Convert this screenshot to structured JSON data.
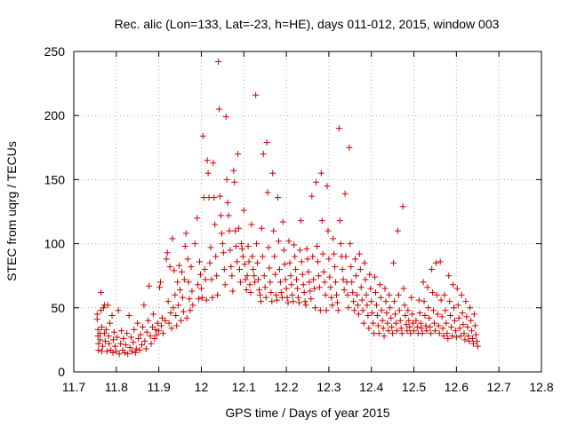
{
  "chart_data": {
    "type": "scatter",
    "title": "Rec. alic (Lon=133, Lat=-23, h=HE), days 011-012, 2015, window 003",
    "xlabel": "GPS time / Days of year 2015",
    "ylabel": "STEC from uqrg / TECUs",
    "xlim": [
      11.7,
      12.8
    ],
    "ylim": [
      0,
      250
    ],
    "x_ticks": [
      "11.7",
      "11.8",
      "11.9",
      "12",
      "12.1",
      "12.2",
      "12.3",
      "12.4",
      "12.5",
      "12.6",
      "12.7",
      "12.8"
    ],
    "y_ticks": [
      "0",
      "50",
      "100",
      "150",
      "200",
      "250"
    ],
    "grid": true,
    "legend": "none",
    "marker": "plus",
    "color": "#cc0000",
    "points": [
      [
        11.755,
        41
      ],
      [
        11.755,
        45
      ],
      [
        11.757,
        33
      ],
      [
        11.757,
        28
      ],
      [
        11.758,
        22
      ],
      [
        11.758,
        17
      ],
      [
        11.762,
        30
      ],
      [
        11.762,
        25
      ],
      [
        11.764,
        62
      ],
      [
        11.764,
        48
      ],
      [
        11.766,
        35
      ],
      [
        11.766,
        16
      ],
      [
        11.768,
        20
      ],
      [
        11.77,
        50
      ],
      [
        11.772,
        30
      ],
      [
        11.772,
        52
      ],
      [
        11.774,
        24
      ],
      [
        11.776,
        33
      ],
      [
        11.778,
        16
      ],
      [
        11.78,
        52
      ],
      [
        11.782,
        28
      ],
      [
        11.783,
        22
      ],
      [
        11.785,
        38
      ],
      [
        11.787,
        17
      ],
      [
        11.79,
        44
      ],
      [
        11.792,
        15
      ],
      [
        11.793,
        25
      ],
      [
        11.795,
        31
      ],
      [
        11.797,
        20
      ],
      [
        11.8,
        16
      ],
      [
        11.802,
        27
      ],
      [
        11.805,
        48
      ],
      [
        11.807,
        14
      ],
      [
        11.81,
        22
      ],
      [
        11.812,
        32
      ],
      [
        11.815,
        17
      ],
      [
        11.817,
        26
      ],
      [
        11.82,
        15
      ],
      [
        11.822,
        21
      ],
      [
        11.825,
        30
      ],
      [
        11.827,
        14
      ],
      [
        11.83,
        44
      ],
      [
        11.832,
        19
      ],
      [
        11.835,
        27
      ],
      [
        11.837,
        16
      ],
      [
        11.84,
        23
      ],
      [
        11.842,
        33
      ],
      [
        11.845,
        15
      ],
      [
        11.847,
        18
      ],
      [
        11.85,
        38
      ],
      [
        11.852,
        26
      ],
      [
        11.855,
        17
      ],
      [
        11.857,
        29
      ],
      [
        11.86,
        21
      ],
      [
        11.862,
        35
      ],
      [
        11.865,
        52
      ],
      [
        11.867,
        24
      ],
      [
        11.87,
        18
      ],
      [
        11.872,
        31
      ],
      [
        11.875,
        40
      ],
      [
        11.877,
        67
      ],
      [
        11.88,
        28
      ],
      [
        11.882,
        22
      ],
      [
        11.885,
        35
      ],
      [
        11.887,
        45
      ],
      [
        11.89,
        26
      ],
      [
        11.892,
        33
      ],
      [
        11.895,
        29
      ],
      [
        11.897,
        38
      ],
      [
        11.9,
        32
      ],
      [
        11.902,
        66
      ],
      [
        11.904,
        70
      ],
      [
        11.906,
        36
      ],
      [
        11.908,
        42
      ],
      [
        11.91,
        30
      ],
      [
        11.915,
        40
      ],
      [
        11.918,
        88
      ],
      [
        11.92,
        93
      ],
      [
        11.922,
        55
      ],
      [
        11.924,
        38
      ],
      [
        11.926,
        82
      ],
      [
        11.928,
        46
      ],
      [
        11.93,
        34
      ],
      [
        11.932,
        104
      ],
      [
        11.934,
        50
      ],
      [
        11.936,
        79
      ],
      [
        11.938,
        60
      ],
      [
        11.94,
        44
      ],
      [
        11.942,
        36
      ],
      [
        11.944,
        70
      ],
      [
        11.946,
        52
      ],
      [
        11.948,
        83
      ],
      [
        11.95,
        64
      ],
      [
        11.952,
        40
      ],
      [
        11.954,
        78
      ],
      [
        11.956,
        58
      ],
      [
        11.958,
        47
      ],
      [
        11.96,
        72
      ],
      [
        11.962,
        98
      ],
      [
        11.964,
        108
      ],
      [
        11.966,
        42
      ],
      [
        11.968,
        88
      ],
      [
        11.97,
        70
      ],
      [
        11.972,
        57
      ],
      [
        11.974,
        48
      ],
      [
        11.976,
        82
      ],
      [
        11.978,
        63
      ],
      [
        11.98,
        52
      ],
      [
        11.985,
        100
      ],
      [
        11.99,
        120
      ],
      [
        11.992,
        68
      ],
      [
        11.994,
        57
      ],
      [
        11.996,
        86
      ],
      [
        11.998,
        76
      ],
      [
        12.0,
        65
      ],
      [
        12.002,
        58
      ],
      [
        12.004,
        184
      ],
      [
        12.006,
        136
      ],
      [
        12.008,
        80
      ],
      [
        12.01,
        72
      ],
      [
        12.012,
        56
      ],
      [
        12.014,
        165
      ],
      [
        12.016,
        155
      ],
      [
        12.018,
        136
      ],
      [
        12.02,
        85
      ],
      [
        12.022,
        97
      ],
      [
        12.024,
        72
      ],
      [
        12.026,
        58
      ],
      [
        12.028,
        163
      ],
      [
        12.03,
        136
      ],
      [
        12.032,
        115
      ],
      [
        12.034,
        90
      ],
      [
        12.036,
        75
      ],
      [
        12.038,
        60
      ],
      [
        12.04,
        242
      ],
      [
        12.042,
        205
      ],
      [
        12.044,
        137
      ],
      [
        12.046,
        122
      ],
      [
        12.048,
        108
      ],
      [
        12.05,
        100
      ],
      [
        12.052,
        93
      ],
      [
        12.054,
        80
      ],
      [
        12.056,
        68
      ],
      [
        12.058,
        199
      ],
      [
        12.06,
        150
      ],
      [
        12.062,
        132
      ],
      [
        12.064,
        122
      ],
      [
        12.066,
        110
      ],
      [
        12.068,
        95
      ],
      [
        12.07,
        82
      ],
      [
        12.072,
        75
      ],
      [
        12.074,
        63
      ],
      [
        12.076,
        157
      ],
      [
        12.078,
        148
      ],
      [
        12.08,
        110
      ],
      [
        12.082,
        98
      ],
      [
        12.084,
        86
      ],
      [
        12.086,
        170
      ],
      [
        12.088,
        112
      ],
      [
        12.09,
        80
      ],
      [
        12.092,
        70
      ],
      [
        12.094,
        100
      ],
      [
        12.096,
        96
      ],
      [
        12.098,
        90
      ],
      [
        12.1,
        126
      ],
      [
        12.102,
        84
      ],
      [
        12.104,
        72
      ],
      [
        12.106,
        64
      ],
      [
        12.108,
        75
      ],
      [
        12.11,
        98
      ],
      [
        12.112,
        86
      ],
      [
        12.114,
        68
      ],
      [
        12.116,
        62
      ],
      [
        12.118,
        115
      ],
      [
        12.12,
        90
      ],
      [
        12.122,
        80
      ],
      [
        12.124,
        75
      ],
      [
        12.126,
        70
      ],
      [
        12.128,
        216
      ],
      [
        12.13,
        100
      ],
      [
        12.132,
        85
      ],
      [
        12.134,
        72
      ],
      [
        12.136,
        64
      ],
      [
        12.138,
        60
      ],
      [
        12.14,
        55
      ],
      [
        12.142,
        112
      ],
      [
        12.144,
        90
      ],
      [
        12.146,
        170
      ],
      [
        12.148,
        75
      ],
      [
        12.15,
        66
      ],
      [
        12.152,
        58
      ],
      [
        12.154,
        179
      ],
      [
        12.156,
        140
      ],
      [
        12.158,
        97
      ],
      [
        12.16,
        81
      ],
      [
        12.162,
        70
      ],
      [
        12.164,
        62
      ],
      [
        12.166,
        55
      ],
      [
        12.168,
        155
      ],
      [
        12.17,
        110
      ],
      [
        12.172,
        90
      ],
      [
        12.174,
        76
      ],
      [
        12.176,
        60
      ],
      [
        12.178,
        56
      ],
      [
        12.18,
        136
      ],
      [
        12.182,
        102
      ],
      [
        12.184,
        80
      ],
      [
        12.186,
        70
      ],
      [
        12.188,
        62
      ],
      [
        12.19,
        58
      ],
      [
        12.192,
        117
      ],
      [
        12.194,
        95
      ],
      [
        12.196,
        84
      ],
      [
        12.198,
        72
      ],
      [
        12.2,
        65
      ],
      [
        12.202,
        58
      ],
      [
        12.204,
        54
      ],
      [
        12.206,
        102
      ],
      [
        12.208,
        85
      ],
      [
        12.21,
        75
      ],
      [
        12.212,
        68
      ],
      [
        12.214,
        60
      ],
      [
        12.216,
        55
      ],
      [
        12.218,
        99
      ],
      [
        12.22,
        90
      ],
      [
        12.222,
        80
      ],
      [
        12.224,
        72
      ],
      [
        12.226,
        65
      ],
      [
        12.228,
        58
      ],
      [
        12.23,
        54
      ],
      [
        12.232,
        95
      ],
      [
        12.234,
        118
      ],
      [
        12.236,
        86
      ],
      [
        12.238,
        76
      ],
      [
        12.24,
        68
      ],
      [
        12.242,
        62
      ],
      [
        12.244,
        55
      ],
      [
        12.246,
        52
      ],
      [
        12.248,
        96
      ],
      [
        12.25,
        88
      ],
      [
        12.252,
        78
      ],
      [
        12.254,
        70
      ],
      [
        12.256,
        63
      ],
      [
        12.258,
        57
      ],
      [
        12.26,
        137
      ],
      [
        12.262,
        90
      ],
      [
        12.264,
        72
      ],
      [
        12.266,
        65
      ],
      [
        12.268,
        50
      ],
      [
        12.27,
        148
      ],
      [
        12.272,
        98
      ],
      [
        12.274,
        86
      ],
      [
        12.276,
        75
      ],
      [
        12.278,
        66
      ],
      [
        12.28,
        48
      ],
      [
        12.282,
        155
      ],
      [
        12.284,
        118
      ],
      [
        12.286,
        92
      ],
      [
        12.288,
        78
      ],
      [
        12.29,
        70
      ],
      [
        12.292,
        60
      ],
      [
        12.294,
        48
      ],
      [
        12.296,
        145
      ],
      [
        12.298,
        110
      ],
      [
        12.3,
        88
      ],
      [
        12.302,
        74
      ],
      [
        12.304,
        66
      ],
      [
        12.306,
        58
      ],
      [
        12.308,
        52
      ],
      [
        12.31,
        104
      ],
      [
        12.312,
        92
      ],
      [
        12.314,
        82
      ],
      [
        12.316,
        70
      ],
      [
        12.318,
        60
      ],
      [
        12.32,
        54
      ],
      [
        12.322,
        48
      ],
      [
        12.324,
        190
      ],
      [
        12.326,
        118
      ],
      [
        12.328,
        100
      ],
      [
        12.33,
        90
      ],
      [
        12.332,
        80
      ],
      [
        12.334,
        72
      ],
      [
        12.336,
        64
      ],
      [
        12.338,
        139
      ],
      [
        12.34,
        90
      ],
      [
        12.342,
        70
      ],
      [
        12.344,
        60
      ],
      [
        12.346,
        50
      ],
      [
        12.348,
        175
      ],
      [
        12.35,
        100
      ],
      [
        12.352,
        82
      ],
      [
        12.354,
        70
      ],
      [
        12.356,
        62
      ],
      [
        12.358,
        55
      ],
      [
        12.36,
        48
      ],
      [
        12.362,
        88
      ],
      [
        12.364,
        75
      ],
      [
        12.366,
        60
      ],
      [
        12.368,
        52
      ],
      [
        12.37,
        45
      ],
      [
        12.372,
        92
      ],
      [
        12.374,
        80
      ],
      [
        12.376,
        66
      ],
      [
        12.378,
        56
      ],
      [
        12.38,
        48
      ],
      [
        12.382,
        38
      ],
      [
        12.384,
        85
      ],
      [
        12.386,
        72
      ],
      [
        12.388,
        60
      ],
      [
        12.39,
        52
      ],
      [
        12.392,
        44
      ],
      [
        12.394,
        34
      ],
      [
        12.396,
        76
      ],
      [
        12.398,
        65
      ],
      [
        12.4,
        55
      ],
      [
        12.402,
        46
      ],
      [
        12.404,
        38
      ],
      [
        12.406,
        30
      ],
      [
        12.408,
        74
      ],
      [
        12.41,
        62
      ],
      [
        12.412,
        52
      ],
      [
        12.414,
        44
      ],
      [
        12.416,
        36
      ],
      [
        12.418,
        30
      ],
      [
        12.42,
        68
      ],
      [
        12.422,
        58
      ],
      [
        12.424,
        48
      ],
      [
        12.426,
        40
      ],
      [
        12.428,
        34
      ],
      [
        12.43,
        28
      ],
      [
        12.432,
        65
      ],
      [
        12.434,
        55
      ],
      [
        12.436,
        46
      ],
      [
        12.438,
        38
      ],
      [
        12.44,
        32
      ],
      [
        12.442,
        60
      ],
      [
        12.444,
        50
      ],
      [
        12.446,
        42
      ],
      [
        12.448,
        35
      ],
      [
        12.45,
        30
      ],
      [
        12.452,
        85
      ],
      [
        12.454,
        55
      ],
      [
        12.456,
        45
      ],
      [
        12.458,
        38
      ],
      [
        12.46,
        32
      ],
      [
        12.462,
        110
      ],
      [
        12.464,
        60
      ],
      [
        12.466,
        48
      ],
      [
        12.468,
        40
      ],
      [
        12.47,
        34
      ],
      [
        12.472,
        30
      ],
      [
        12.474,
        129
      ],
      [
        12.476,
        65
      ],
      [
        12.478,
        52
      ],
      [
        12.48,
        44
      ],
      [
        12.482,
        37
      ],
      [
        12.484,
        32
      ],
      [
        12.486,
        48
      ],
      [
        12.488,
        40
      ],
      [
        12.49,
        35
      ],
      [
        12.492,
        30
      ],
      [
        12.494,
        58
      ],
      [
        12.496,
        45
      ],
      [
        12.498,
        38
      ],
      [
        12.5,
        32
      ],
      [
        12.505,
        40
      ],
      [
        12.508,
        35
      ],
      [
        12.51,
        30
      ],
      [
        12.512,
        56
      ],
      [
        12.514,
        46
      ],
      [
        12.516,
        38
      ],
      [
        12.518,
        34
      ],
      [
        12.52,
        30
      ],
      [
        12.522,
        70
      ],
      [
        12.524,
        55
      ],
      [
        12.526,
        44
      ],
      [
        12.528,
        36
      ],
      [
        12.53,
        32
      ],
      [
        12.532,
        66
      ],
      [
        12.534,
        50
      ],
      [
        12.536,
        42
      ],
      [
        12.538,
        35
      ],
      [
        12.54,
        30
      ],
      [
        12.542,
        80
      ],
      [
        12.544,
        62
      ],
      [
        12.546,
        48
      ],
      [
        12.548,
        38
      ],
      [
        12.55,
        32
      ],
      [
        12.552,
        85
      ],
      [
        12.554,
        60
      ],
      [
        12.556,
        45
      ],
      [
        12.558,
        36
      ],
      [
        12.56,
        30
      ],
      [
        12.562,
        86
      ],
      [
        12.564,
        56
      ],
      [
        12.566,
        43
      ],
      [
        12.568,
        34
      ],
      [
        12.57,
        28
      ],
      [
        12.572,
        60
      ],
      [
        12.574,
        48
      ],
      [
        12.576,
        38
      ],
      [
        12.578,
        30
      ],
      [
        12.58,
        26
      ],
      [
        12.582,
        75
      ],
      [
        12.584,
        55
      ],
      [
        12.586,
        44
      ],
      [
        12.588,
        35
      ],
      [
        12.59,
        28
      ],
      [
        12.592,
        68
      ],
      [
        12.594,
        50
      ],
      [
        12.596,
        40
      ],
      [
        12.598,
        32
      ],
      [
        12.6,
        27
      ],
      [
        12.602,
        65
      ],
      [
        12.604,
        52
      ],
      [
        12.606,
        42
      ],
      [
        12.608,
        34
      ],
      [
        12.61,
        28
      ],
      [
        12.612,
        60
      ],
      [
        12.614,
        46
      ],
      [
        12.616,
        37
      ],
      [
        12.618,
        30
      ],
      [
        12.62,
        25
      ],
      [
        12.622,
        55
      ],
      [
        12.624,
        43
      ],
      [
        12.626,
        35
      ],
      [
        12.628,
        28
      ],
      [
        12.63,
        24
      ],
      [
        12.632,
        50
      ],
      [
        12.634,
        40
      ],
      [
        12.636,
        32
      ],
      [
        12.638,
        26
      ],
      [
        12.64,
        22
      ],
      [
        12.642,
        45
      ],
      [
        12.644,
        36
      ],
      [
        12.646,
        29
      ],
      [
        12.648,
        24
      ],
      [
        12.65,
        20
      ]
    ]
  }
}
